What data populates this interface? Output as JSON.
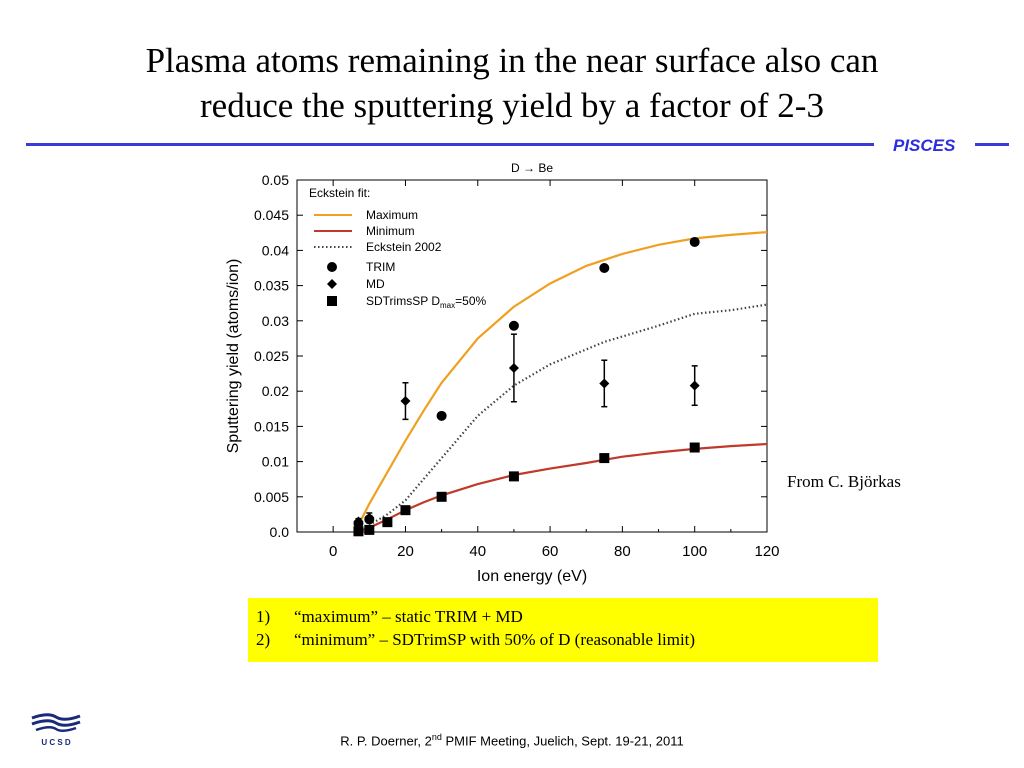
{
  "slide": {
    "title_line1": "Plasma atoms remaining in the near surface also can",
    "title_line2": "reduce the sputtering yield by a factor of 2-3",
    "brand": "PISCES",
    "credit": "From C. Björkas",
    "notes": [
      {
        "num": "1)",
        "text": "“maximum” – static TRIM + MD"
      },
      {
        "num": "2)",
        "text": "“minimum” – SDTrimSP with 50% of D (reasonable limit)"
      }
    ],
    "footer": {
      "pre": "R. P. Doerner, 2",
      "sup": "nd",
      "post": " PMIF Meeting, Juelich, Sept. 19-21, 2011"
    },
    "logo_text": "U C S D",
    "colors": {
      "rule": "#3a3ad6",
      "brand": "#2d2de0",
      "notes_bg": "#ffff00"
    }
  },
  "chart_data": {
    "type": "scatter",
    "title": "D → Be",
    "xlabel": "Ion energy (eV)",
    "ylabel": "Sputtering yield (atoms/ion)",
    "xlim": [
      -10,
      120
    ],
    "ylim": [
      0,
      0.05
    ],
    "xticks": [
      0,
      20,
      40,
      60,
      80,
      100,
      120
    ],
    "yticks": [
      0.0,
      0.005,
      0.01,
      0.015,
      0.02,
      0.025,
      0.03,
      0.035,
      0.04,
      0.045,
      0.05
    ],
    "ytick_labels": [
      "0.0",
      "0.005",
      "0.01",
      "0.015",
      "0.02",
      "0.025",
      "0.03",
      "0.035",
      "0.04",
      "0.045",
      "0.05"
    ],
    "legend_title": "Eckstein fit:",
    "legend_position": "top-left",
    "lines": [
      {
        "name": "Maximum",
        "color": "#f0a020",
        "style": "solid",
        "x": [
          7,
          10,
          15,
          20,
          25,
          30,
          40,
          50,
          60,
          70,
          80,
          90,
          100,
          110,
          120
        ],
        "y": [
          0.001,
          0.004,
          0.0085,
          0.013,
          0.0172,
          0.0212,
          0.0275,
          0.032,
          0.0353,
          0.0378,
          0.0395,
          0.0408,
          0.0417,
          0.0422,
          0.0426
        ]
      },
      {
        "name": "Minimum",
        "color": "#c0392b",
        "style": "solid",
        "x": [
          7,
          10,
          15,
          20,
          25,
          30,
          40,
          50,
          60,
          70,
          80,
          90,
          100,
          110,
          120
        ],
        "y": [
          0.0001,
          0.0006,
          0.0018,
          0.0031,
          0.0042,
          0.0052,
          0.0068,
          0.0081,
          0.009,
          0.0098,
          0.0107,
          0.0113,
          0.0118,
          0.0122,
          0.0125
        ]
      },
      {
        "name": "Eckstein 2002",
        "color": "#444444",
        "style": "dotted",
        "x": [
          7,
          10,
          15,
          20,
          25,
          30,
          40,
          50,
          60,
          75,
          90,
          100,
          110,
          120
        ],
        "y": [
          0.0002,
          0.001,
          0.0025,
          0.0045,
          0.0075,
          0.0105,
          0.0165,
          0.0208,
          0.0238,
          0.027,
          0.0293,
          0.031,
          0.0315,
          0.0323
        ]
      }
    ],
    "series": [
      {
        "name": "TRIM",
        "marker": "circle",
        "x": [
          7,
          10,
          30,
          50,
          75,
          100
        ],
        "y": [
          0.0012,
          0.0018,
          0.0165,
          0.0293,
          0.0375,
          0.0412
        ]
      },
      {
        "name": "MD",
        "marker": "diamond",
        "x": [
          7,
          10,
          20,
          50,
          75,
          100
        ],
        "y": [
          0.0015,
          0.002,
          0.0186,
          0.0233,
          0.0211,
          0.0208
        ],
        "err": [
          0.0004,
          0.0007,
          0.0026,
          0.0048,
          0.0033,
          0.0028
        ]
      },
      {
        "name": "SDTrimsSP D",
        "name_sub": "max",
        "name_post": "=50%",
        "marker": "square",
        "x": [
          7,
          10,
          15,
          20,
          30,
          50,
          75,
          100
        ],
        "y": [
          0.0001,
          0.0003,
          0.0014,
          0.0031,
          0.005,
          0.0079,
          0.0105,
          0.012
        ]
      }
    ]
  }
}
